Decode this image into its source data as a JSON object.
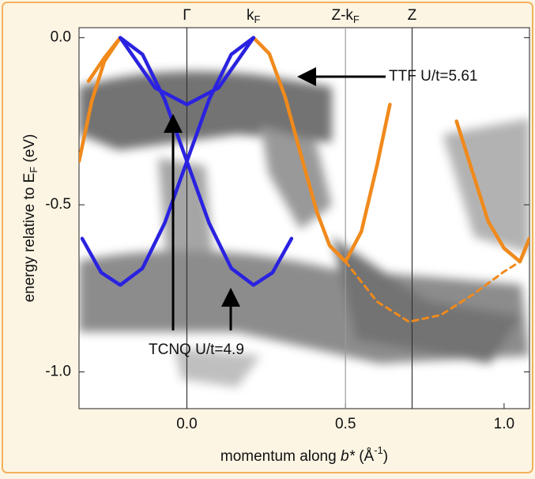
{
  "chart_data": {
    "type": "line",
    "ylabel": {
      "main": "energy relative to E",
      "sub": "F",
      "unit": " (eV)"
    },
    "xlabel": {
      "main": "momentum along ",
      "em": "b*",
      "unit": " (Å",
      "sup": "-1",
      "close": ")"
    },
    "xlim": [
      -0.34,
      1.08
    ],
    "ylim": [
      -1.11,
      0.03
    ],
    "xticks": [
      {
        "value": 0,
        "label": "0.0"
      },
      0.5,
      {
        "value": 1,
        "label": "1.0"
      }
    ],
    "yticks": [
      {
        "value": 0,
        "label": "0.0"
      },
      -0.5,
      {
        "value": -1,
        "label": "-1.0"
      }
    ],
    "markers": [
      {
        "x": 0,
        "label": "Γ",
        "line": "#333"
      },
      {
        "x": 0.21,
        "label": "k",
        "sub": "F"
      },
      {
        "x": 0.5,
        "label": "Z-k",
        "sub": "F",
        "line": "#999"
      },
      {
        "x": 0.71,
        "label": "Z",
        "line": "#333"
      }
    ],
    "series": [
      {
        "color": "#f08a1c",
        "x": [
          -0.34,
          -0.3,
          -0.26,
          -0.21
        ],
        "values": [
          -0.37,
          -0.19,
          -0.07,
          0
        ]
      },
      {
        "color": "#f08a1c",
        "x": [
          -0.31,
          -0.26,
          -0.21
        ],
        "values": [
          -0.13,
          -0.06,
          0
        ]
      },
      {
        "color": "#f08a1c",
        "x": [
          0.21,
          0.26,
          0.31,
          0.36,
          0.41,
          0.45,
          0.5,
          0.55,
          0.6,
          0.64
        ],
        "values": [
          0,
          -0.048,
          -0.178,
          -0.353,
          -0.522,
          -0.622,
          -0.67,
          -0.58,
          -0.38,
          -0.2
        ]
      },
      {
        "color": "#f08a1c",
        "x": [
          0.85,
          0.9,
          0.95,
          1.0,
          1.05,
          1.08
        ],
        "values": [
          -0.25,
          -0.4,
          -0.55,
          -0.63,
          -0.67,
          -0.6
        ]
      },
      {
        "color": "#f08a1c",
        "dash": true,
        "x": [
          0.5,
          0.6,
          0.7,
          0.8,
          0.9,
          1.0,
          1.05
        ],
        "values": [
          -0.67,
          -0.79,
          -0.85,
          -0.83,
          -0.77,
          -0.7,
          -0.67
        ]
      },
      {
        "color": "#2a22e0",
        "x": [
          -0.21,
          -0.1,
          0,
          0.1,
          0.21
        ],
        "values": [
          0,
          -0.15,
          -0.2,
          -0.15,
          0
        ]
      },
      {
        "color": "#2a22e0",
        "x": [
          -0.33,
          -0.27,
          -0.21,
          -0.14,
          -0.07,
          0,
          0.07,
          0.14,
          0.21
        ],
        "values": [
          -0.601,
          -0.703,
          -0.74,
          -0.69,
          -0.555,
          -0.37,
          -0.185,
          -0.05,
          0
        ]
      },
      {
        "color": "#2a22e0",
        "x": [
          -0.21,
          -0.14,
          -0.07,
          0,
          0.07,
          0.14,
          0.21,
          0.27,
          0.33
        ],
        "values": [
          0,
          -0.05,
          -0.185,
          -0.37,
          -0.555,
          -0.69,
          -0.74,
          -0.703,
          -0.601
        ]
      }
    ],
    "annotations": [
      {
        "text": "TTF U/t=5.61"
      },
      {
        "text": "TCNQ U/t=4.9"
      }
    ]
  }
}
